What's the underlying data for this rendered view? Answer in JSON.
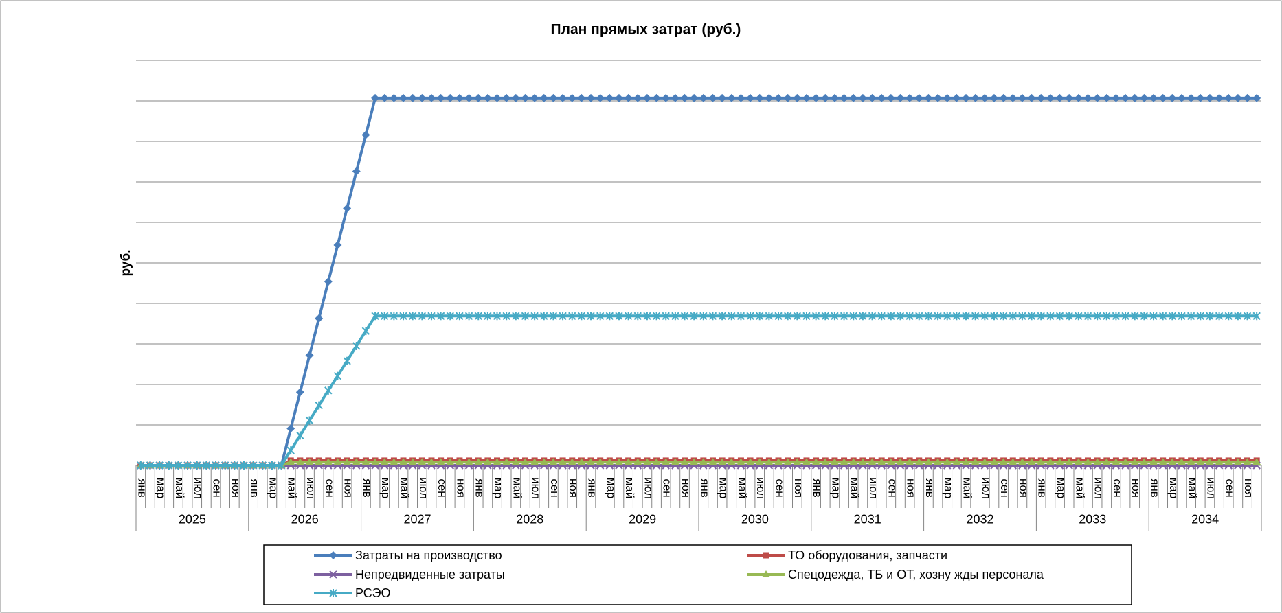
{
  "chart_data": {
    "type": "line",
    "title": "План прямых затрат (руб.)",
    "y_label": "руб.",
    "categories": [
      "янв",
      null,
      "мар",
      null,
      "май",
      null,
      "июл",
      null,
      "сен",
      null,
      "ноя",
      null,
      "янв",
      null,
      "мар",
      null,
      "май",
      null,
      "июл",
      null,
      "сен",
      null,
      "ноя",
      null,
      "янв",
      null,
      "мар",
      null,
      "май",
      null,
      "июл",
      null,
      "сен",
      null,
      "ноя",
      null,
      "янв",
      null,
      "мар",
      null,
      "май",
      null,
      "июл",
      null,
      "сен",
      null,
      "ноя",
      null,
      "янв",
      null,
      "мар",
      null,
      "май",
      null,
      "июл",
      null,
      "сен",
      null,
      "ноя",
      null,
      "янв",
      null,
      "мар",
      null,
      "май",
      null,
      "июл",
      null,
      "сен",
      null,
      "ноя",
      null,
      "янв",
      null,
      "мар",
      null,
      "май",
      null,
      "июл",
      null,
      "сен",
      null,
      "ноя",
      null,
      "янв",
      null,
      "мар",
      null,
      "май",
      null,
      "июл",
      null,
      "сен",
      null,
      "ноя",
      null,
      "янв",
      null,
      "мар",
      null,
      "май",
      null,
      "июл",
      null,
      "сен",
      null,
      "ноя",
      null,
      "янв",
      null,
      "мар",
      null,
      "май",
      null,
      "июл",
      null,
      "сен",
      null,
      "ноя",
      null
    ],
    "groups": [
      "2025",
      "2026",
      "2027",
      "2028",
      "2029",
      "2030",
      "2031",
      "2032",
      "2033",
      "2034"
    ],
    "ylim": [
      0,
      10
    ],
    "yticks": [
      0,
      1,
      2,
      3,
      4,
      5,
      6,
      7,
      8,
      9,
      10
    ],
    "grid": true,
    "series": [
      {
        "name": "Затраты на производство",
        "color": "#4a7ebb",
        "marker": "diamond",
        "values": [
          0,
          0,
          0,
          0,
          0,
          0,
          0,
          0,
          0,
          0,
          0,
          0,
          0,
          0,
          0,
          0,
          0.91,
          1.81,
          2.72,
          3.63,
          4.54,
          5.44,
          6.35,
          7.26,
          8.16,
          9.07,
          9.07,
          9.07,
          9.07,
          9.07,
          9.07,
          9.07,
          9.07,
          9.07,
          9.07,
          9.07,
          9.07,
          9.07,
          9.07,
          9.07,
          9.07,
          9.07,
          9.07,
          9.07,
          9.07,
          9.07,
          9.07,
          9.07,
          9.07,
          9.07,
          9.07,
          9.07,
          9.07,
          9.07,
          9.07,
          9.07,
          9.07,
          9.07,
          9.07,
          9.07,
          9.07,
          9.07,
          9.07,
          9.07,
          9.07,
          9.07,
          9.07,
          9.07,
          9.07,
          9.07,
          9.07,
          9.07,
          9.07,
          9.07,
          9.07,
          9.07,
          9.07,
          9.07,
          9.07,
          9.07,
          9.07,
          9.07,
          9.07,
          9.07,
          9.07,
          9.07,
          9.07,
          9.07,
          9.07,
          9.07,
          9.07,
          9.07,
          9.07,
          9.07,
          9.07,
          9.07,
          9.07,
          9.07,
          9.07,
          9.07,
          9.07,
          9.07,
          9.07,
          9.07,
          9.07,
          9.07,
          9.07,
          9.07,
          9.07,
          9.07,
          9.07,
          9.07,
          9.07,
          9.07,
          9.07,
          9.07,
          9.07,
          9.07,
          9.07,
          9.07
        ]
      },
      {
        "name": "ТО оборудования, запчасти",
        "color": "#be4b48",
        "marker": "square",
        "values": [
          0,
          0,
          0,
          0,
          0,
          0,
          0,
          0,
          0,
          0,
          0,
          0,
          0,
          0,
          0,
          0,
          0.12,
          0.12,
          0.12,
          0.12,
          0.12,
          0.12,
          0.12,
          0.12,
          0.12,
          0.12,
          0.12,
          0.12,
          0.12,
          0.12,
          0.12,
          0.12,
          0.12,
          0.12,
          0.12,
          0.12,
          0.12,
          0.12,
          0.12,
          0.12,
          0.12,
          0.12,
          0.12,
          0.12,
          0.12,
          0.12,
          0.12,
          0.12,
          0.12,
          0.12,
          0.12,
          0.12,
          0.12,
          0.12,
          0.12,
          0.12,
          0.12,
          0.12,
          0.12,
          0.12,
          0.12,
          0.12,
          0.12,
          0.12,
          0.12,
          0.12,
          0.12,
          0.12,
          0.12,
          0.12,
          0.12,
          0.12,
          0.12,
          0.12,
          0.12,
          0.12,
          0.12,
          0.12,
          0.12,
          0.12,
          0.12,
          0.12,
          0.12,
          0.12,
          0.12,
          0.12,
          0.12,
          0.12,
          0.12,
          0.12,
          0.12,
          0.12,
          0.12,
          0.12,
          0.12,
          0.12,
          0.12,
          0.12,
          0.12,
          0.12,
          0.12,
          0.12,
          0.12,
          0.12,
          0.12,
          0.12,
          0.12,
          0.12,
          0.12,
          0.12,
          0.12,
          0.12,
          0.12,
          0.12,
          0.12,
          0.12,
          0.12,
          0.12,
          0.12,
          0.12
        ]
      },
      {
        "name": "Непредвиденные затраты",
        "color": "#7d60a0",
        "marker": "x",
        "values": [
          0,
          0,
          0,
          0,
          0,
          0,
          0,
          0,
          0,
          0,
          0,
          0,
          0,
          0,
          0,
          0,
          0,
          0,
          0,
          0,
          0,
          0,
          0,
          0,
          0,
          0,
          0,
          0,
          0,
          0,
          0,
          0,
          0,
          0,
          0,
          0,
          0,
          0,
          0,
          0,
          0,
          0,
          0,
          0,
          0,
          0,
          0,
          0,
          0,
          0,
          0,
          0,
          0,
          0,
          0,
          0,
          0,
          0,
          0,
          0,
          0,
          0,
          0,
          0,
          0,
          0,
          0,
          0,
          0,
          0,
          0,
          0,
          0,
          0,
          0,
          0,
          0,
          0,
          0,
          0,
          0,
          0,
          0,
          0,
          0,
          0,
          0,
          0,
          0,
          0,
          0,
          0,
          0,
          0,
          0,
          0,
          0,
          0,
          0,
          0,
          0,
          0,
          0,
          0,
          0,
          0,
          0,
          0,
          0,
          0,
          0,
          0,
          0,
          0,
          0,
          0,
          0,
          0,
          0,
          0
        ]
      },
      {
        "name": "Спецодежда, ТБ и ОТ,  хозну жды персонала",
        "color": "#98b954",
        "marker": "triangle",
        "values": [
          0,
          0,
          0,
          0,
          0,
          0,
          0,
          0,
          0,
          0,
          0,
          0,
          0,
          0,
          0,
          0,
          0.08,
          0.08,
          0.08,
          0.08,
          0.08,
          0.08,
          0.08,
          0.08,
          0.08,
          0.08,
          0.08,
          0.08,
          0.08,
          0.08,
          0.08,
          0.08,
          0.08,
          0.08,
          0.08,
          0.08,
          0.08,
          0.08,
          0.08,
          0.08,
          0.08,
          0.08,
          0.08,
          0.08,
          0.08,
          0.08,
          0.08,
          0.08,
          0.08,
          0.08,
          0.08,
          0.08,
          0.08,
          0.08,
          0.08,
          0.08,
          0.08,
          0.08,
          0.08,
          0.08,
          0.08,
          0.08,
          0.08,
          0.08,
          0.08,
          0.08,
          0.08,
          0.08,
          0.08,
          0.08,
          0.08,
          0.08,
          0.08,
          0.08,
          0.08,
          0.08,
          0.08,
          0.08,
          0.08,
          0.08,
          0.08,
          0.08,
          0.08,
          0.08,
          0.08,
          0.08,
          0.08,
          0.08,
          0.08,
          0.08,
          0.08,
          0.08,
          0.08,
          0.08,
          0.08,
          0.08,
          0.08,
          0.08,
          0.08,
          0.08,
          0.08,
          0.08,
          0.08,
          0.08,
          0.08,
          0.08,
          0.08,
          0.08,
          0.08,
          0.08,
          0.08,
          0.08,
          0.08,
          0.08,
          0.08,
          0.08,
          0.08,
          0.08,
          0.08,
          0.08
        ]
      },
      {
        "name": "РСЭО",
        "color": "#46aac5",
        "marker": "star",
        "values": [
          0,
          0,
          0,
          0,
          0,
          0,
          0,
          0,
          0,
          0,
          0,
          0,
          0,
          0,
          0,
          0,
          0.37,
          0.74,
          1.11,
          1.48,
          1.85,
          2.21,
          2.58,
          2.95,
          3.32,
          3.69,
          3.69,
          3.69,
          3.69,
          3.69,
          3.69,
          3.69,
          3.69,
          3.69,
          3.69,
          3.69,
          3.69,
          3.69,
          3.69,
          3.69,
          3.69,
          3.69,
          3.69,
          3.69,
          3.69,
          3.69,
          3.69,
          3.69,
          3.69,
          3.69,
          3.69,
          3.69,
          3.69,
          3.69,
          3.69,
          3.69,
          3.69,
          3.69,
          3.69,
          3.69,
          3.69,
          3.69,
          3.69,
          3.69,
          3.69,
          3.69,
          3.69,
          3.69,
          3.69,
          3.69,
          3.69,
          3.69,
          3.69,
          3.69,
          3.69,
          3.69,
          3.69,
          3.69,
          3.69,
          3.69,
          3.69,
          3.69,
          3.69,
          3.69,
          3.69,
          3.69,
          3.69,
          3.69,
          3.69,
          3.69,
          3.69,
          3.69,
          3.69,
          3.69,
          3.69,
          3.69,
          3.69,
          3.69,
          3.69,
          3.69,
          3.69,
          3.69,
          3.69,
          3.69,
          3.69,
          3.69,
          3.69,
          3.69,
          3.69,
          3.69,
          3.69,
          3.69,
          3.69,
          3.69,
          3.69,
          3.69,
          3.69,
          3.69,
          3.69,
          3.69
        ]
      }
    ]
  }
}
